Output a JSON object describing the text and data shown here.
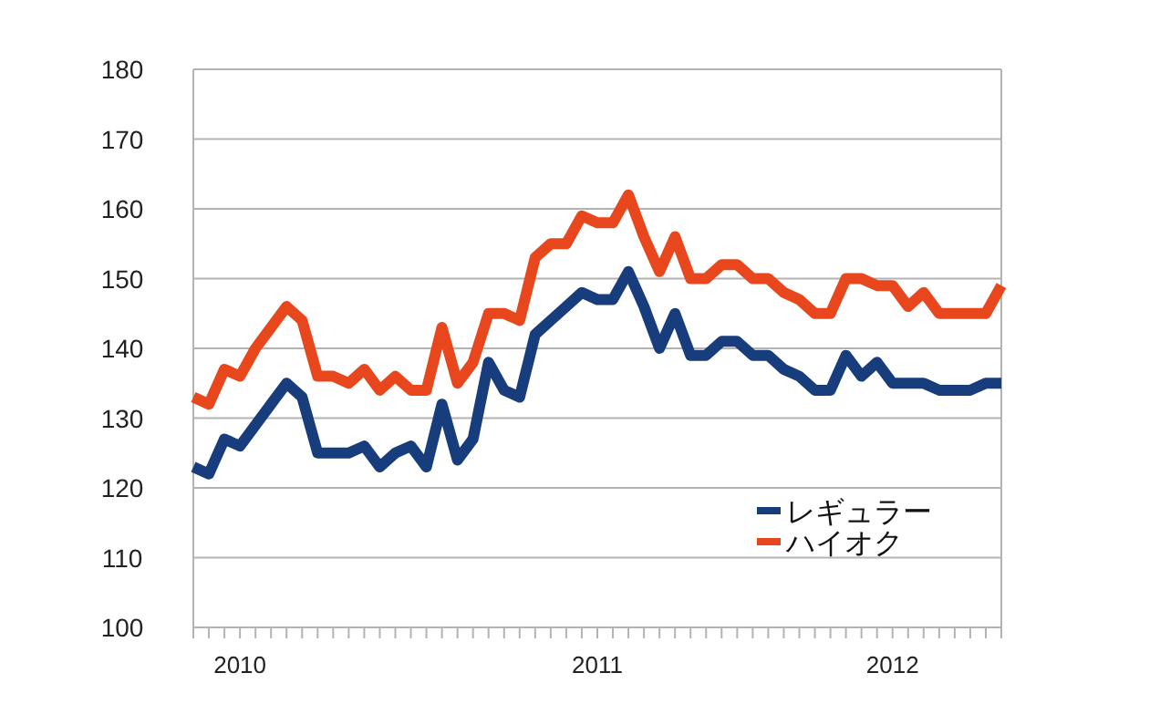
{
  "chart_data": {
    "type": "line",
    "categories": [
      null,
      null,
      null,
      "2010",
      null,
      null,
      null,
      null,
      null,
      null,
      null,
      null,
      null,
      null,
      null,
      null,
      null,
      null,
      null,
      null,
      null,
      null,
      null,
      null,
      null,
      null,
      "2011",
      null,
      null,
      null,
      null,
      null,
      null,
      null,
      null,
      null,
      null,
      null,
      null,
      null,
      null,
      null,
      null,
      null,
      null,
      "2012",
      null,
      null,
      null,
      null,
      null,
      null,
      null
    ],
    "series": [
      {
        "name": "レギュラー",
        "color": "#173d7c",
        "values": [
          123,
          122,
          127,
          126,
          129,
          132,
          135,
          133,
          125,
          125,
          125,
          126,
          123,
          125,
          126,
          123,
          132,
          124,
          127,
          138,
          134,
          133,
          142,
          144,
          146,
          148,
          147,
          147,
          151,
          146,
          140,
          145,
          139,
          139,
          141,
          141,
          139,
          139,
          137,
          136,
          134,
          134,
          139,
          136,
          138,
          135,
          135,
          135,
          134,
          134,
          134,
          135,
          135
        ]
      },
      {
        "name": "ハイオク",
        "color": "#e8461c",
        "values": [
          133,
          132,
          137,
          136,
          140,
          143,
          146,
          144,
          136,
          136,
          135,
          137,
          134,
          136,
          134,
          134,
          143,
          135,
          138,
          145,
          145,
          144,
          153,
          155,
          155,
          159,
          158,
          158,
          162,
          156,
          151,
          156,
          150,
          150,
          152,
          152,
          150,
          150,
          148,
          147,
          145,
          145,
          150,
          150,
          149,
          149,
          146,
          148,
          145,
          145,
          145,
          145,
          149
        ]
      }
    ],
    "ylim": [
      100,
      180
    ],
    "yticks": [
      100,
      110,
      120,
      130,
      140,
      150,
      160,
      170,
      180
    ],
    "grid": "y",
    "legend": "bottom right"
  }
}
